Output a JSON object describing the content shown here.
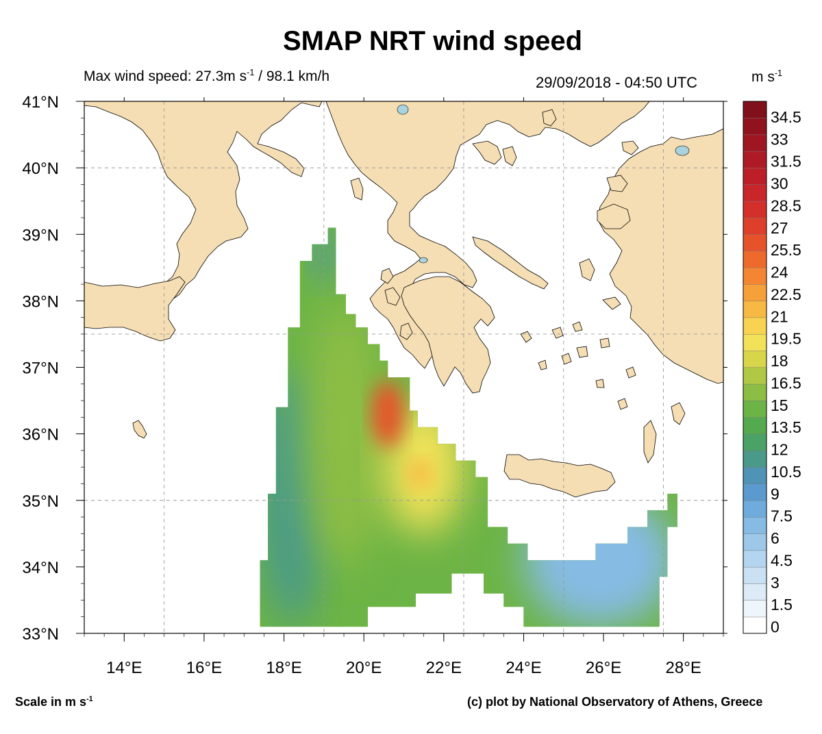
{
  "title": "SMAP NRT wind speed",
  "max_wind": {
    "prefix": "Max wind speed: 27.3m s",
    "exponent": "-1",
    "suffix": " / 98.1 km/h"
  },
  "timestamp": "29/09/2018 - 04:50 UTC",
  "colorbar_unit": {
    "base": "m s",
    "exponent": "-1"
  },
  "scale_note": {
    "base": "Scale in m s",
    "exponent": "-1"
  },
  "credit": "(c) plot by National Observatory of Athens, Greece",
  "colors": {
    "land": "#f5deb3",
    "sea": "#ffffff",
    "lakes": "#aad3df",
    "coast": "#000000",
    "grid": "#999999"
  },
  "chart_data": {
    "type": "heatmap",
    "title": "SMAP NRT wind speed",
    "x_axis": {
      "range": [
        13,
        29
      ],
      "unit": "°E",
      "ticks": [
        14,
        16,
        18,
        20,
        22,
        24,
        26,
        28
      ],
      "tick_labels": [
        "14°E",
        "16°E",
        "18°E",
        "20°E",
        "22°E",
        "24°E",
        "26°E",
        "28°E"
      ]
    },
    "y_axis": {
      "range": [
        33,
        41
      ],
      "unit": "°N",
      "ticks": [
        33,
        34,
        35,
        36,
        37,
        38,
        39,
        40,
        41
      ],
      "tick_labels": [
        "33°N",
        "34°N",
        "35°N",
        "36°N",
        "37°N",
        "38°N",
        "39°N",
        "40°N",
        "41°N"
      ]
    },
    "grid": true,
    "colorbar": {
      "placement": "right",
      "range": [
        0,
        36
      ],
      "labels": [
        "0",
        "1.5",
        "3",
        "4.5",
        "6",
        "7.5",
        "9",
        "10.5",
        "12",
        "13.5",
        "15",
        "16.5",
        "18",
        "19.5",
        "21",
        "22.5",
        "24",
        "25.5",
        "27",
        "28.5",
        "30",
        "31.5",
        "33",
        "34.5"
      ],
      "colors": [
        "#ffffff",
        "#eef5fb",
        "#dcebf7",
        "#c9e1f3",
        "#b3d5ef",
        "#9dc8ea",
        "#86bbe4",
        "#6fabdc",
        "#5a9acf",
        "#4f93b6",
        "#4a9a8a",
        "#4aa266",
        "#53aa4f",
        "#6cb445",
        "#8cbd45",
        "#b0c944",
        "#d7d64a",
        "#f2e259",
        "#f8d250",
        "#f7b943",
        "#f6a03a",
        "#f48533",
        "#ee6a2c",
        "#e6522a",
        "#dd3f2a",
        "#d3302b",
        "#c8262a",
        "#bc1f28",
        "#ae1a25",
        "#9f1621",
        "#90121d",
        "#80101a"
      ]
    },
    "wind_max_ms": 27.3,
    "wind_max_kmh": 98.1,
    "swath": {
      "west_edge": [
        [
          17.4,
          33.1
        ],
        [
          17.4,
          34.1
        ],
        [
          17.6,
          34.1
        ],
        [
          17.6,
          35.1
        ],
        [
          17.8,
          35.1
        ],
        [
          17.8,
          36.4
        ],
        [
          18.1,
          36.4
        ],
        [
          18.1,
          37.6
        ],
        [
          18.4,
          37.6
        ],
        [
          18.4,
          38.6
        ],
        [
          18.7,
          38.6
        ],
        [
          18.7,
          38.85
        ],
        [
          19.1,
          38.85
        ],
        [
          19.1,
          39.1
        ],
        [
          19.3,
          39.1
        ]
      ],
      "east_edge": [
        [
          19.3,
          38.1
        ],
        [
          19.55,
          38.1
        ],
        [
          19.55,
          37.8
        ],
        [
          19.8,
          37.8
        ],
        [
          19.8,
          37.6
        ],
        [
          20.1,
          37.6
        ],
        [
          20.1,
          37.35
        ],
        [
          20.4,
          37.35
        ],
        [
          20.4,
          37.1
        ],
        [
          20.6,
          37.1
        ],
        [
          20.6,
          36.85
        ],
        [
          21.15,
          36.85
        ],
        [
          21.15,
          36.35
        ],
        [
          21.35,
          36.35
        ],
        [
          21.35,
          36.1
        ],
        [
          21.85,
          36.1
        ],
        [
          21.85,
          35.85
        ],
        [
          22.3,
          35.85
        ],
        [
          22.3,
          35.6
        ],
        [
          22.8,
          35.6
        ],
        [
          22.8,
          35.35
        ],
        [
          23.1,
          35.35
        ],
        [
          23.1,
          34.6
        ],
        [
          23.6,
          34.6
        ],
        [
          23.6,
          34.35
        ],
        [
          24.1,
          34.35
        ],
        [
          24.1,
          34.1
        ],
        [
          25.8,
          34.1
        ],
        [
          25.8,
          34.35
        ],
        [
          26.6,
          34.35
        ],
        [
          26.6,
          34.6
        ],
        [
          27.1,
          34.6
        ],
        [
          27.1,
          34.85
        ],
        [
          27.6,
          34.85
        ],
        [
          27.6,
          35.1
        ],
        [
          27.85,
          35.1
        ],
        [
          27.85,
          34.6
        ],
        [
          27.6,
          34.6
        ],
        [
          27.6,
          33.85
        ],
        [
          27.4,
          33.85
        ],
        [
          27.4,
          33.1
        ]
      ],
      "south_edge": [
        [
          24.0,
          33.1
        ],
        [
          24.0,
          33.4
        ],
        [
          23.5,
          33.4
        ],
        [
          23.5,
          33.6
        ],
        [
          23.0,
          33.6
        ],
        [
          23.0,
          33.9
        ],
        [
          22.2,
          33.9
        ],
        [
          22.2,
          33.6
        ],
        [
          21.3,
          33.6
        ],
        [
          21.3,
          33.4
        ],
        [
          20.1,
          33.4
        ],
        [
          20.1,
          33.1
        ]
      ],
      "zones": [
        {
          "label": "west strip",
          "approx_ms": 12,
          "lon": [
            17.4,
            19.0
          ],
          "lat": [
            33.1,
            37.0
          ]
        },
        {
          "label": "north tip",
          "approx_ms": 11,
          "lon": [
            18.7,
            19.3
          ],
          "lat": [
            38.3,
            39.1
          ]
        },
        {
          "label": "central",
          "approx_ms": 16,
          "lon": [
            18.5,
            20.5
          ],
          "lat": [
            34.0,
            38.0
          ]
        },
        {
          "label": "eastern band",
          "approx_ms": 19.5,
          "lon": [
            20.5,
            22.5
          ],
          "lat": [
            34.5,
            36.5
          ]
        },
        {
          "label": "core maximum",
          "approx_ms": 26,
          "lon": [
            20.2,
            21.0
          ],
          "lat": [
            35.8,
            36.8
          ]
        },
        {
          "label": "secondary maximum",
          "approx_ms": 22,
          "lon": [
            21.1,
            21.7
          ],
          "lat": [
            35.2,
            35.6
          ]
        },
        {
          "label": "south-east tail",
          "approx_ms": 7.5,
          "lon": [
            24.0,
            27.8
          ],
          "lat": [
            33.1,
            35.1
          ]
        }
      ]
    }
  }
}
